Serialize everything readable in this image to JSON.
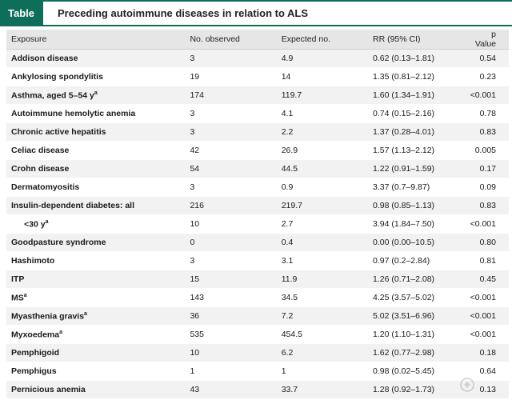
{
  "title": {
    "tag": "Table",
    "text": "Preceding autoimmune diseases in relation to ALS"
  },
  "columns": [
    "Exposure",
    "No. observed",
    "Expected no.",
    "RR (95% CI)",
    "p Value"
  ],
  "rows": [
    {
      "exposure": "Addison disease",
      "sup": "",
      "observed": "3",
      "expected": "4.9",
      "rr": "0.62 (0.13–1.81)",
      "p": "0.54"
    },
    {
      "exposure": "Ankylosing spondylitis",
      "sup": "",
      "observed": "19",
      "expected": "14",
      "rr": "1.35 (0.81–2.12)",
      "p": "0.23"
    },
    {
      "exposure": "Asthma, aged 5–54 y",
      "sup": "a",
      "observed": "174",
      "expected": "119.7",
      "rr": "1.60 (1.34–1.91)",
      "p": "<0.001"
    },
    {
      "exposure": "Autoimmune hemolytic anemia",
      "sup": "",
      "observed": "3",
      "expected": "4.1",
      "rr": "0.74 (0.15–2.16)",
      "p": "0.78"
    },
    {
      "exposure": "Chronic active hepatitis",
      "sup": "",
      "observed": "3",
      "expected": "2.2",
      "rr": "1.37 (0.28–4.01)",
      "p": "0.83"
    },
    {
      "exposure": "Celiac disease",
      "sup": "",
      "observed": "42",
      "expected": "26.9",
      "rr": "1.57 (1.13–2.12)",
      "p": "0.005"
    },
    {
      "exposure": "Crohn disease",
      "sup": "",
      "observed": "54",
      "expected": "44.5",
      "rr": "1.22 (0.91–1.59)",
      "p": "0.17"
    },
    {
      "exposure": "Dermatomyositis",
      "sup": "",
      "observed": "3",
      "expected": "0.9",
      "rr": "3.37 (0.7–9.87)",
      "p": "0.09"
    },
    {
      "exposure": "Insulin-dependent diabetes: all",
      "sup": "",
      "observed": "216",
      "expected": "219.7",
      "rr": "0.98 (0.85–1.13)",
      "p": "0.83"
    },
    {
      "exposure": "<30 y",
      "sup": "a",
      "observed": "10",
      "expected": "2.7",
      "rr": "3.94 (1.84–7.50)",
      "p": "<0.001",
      "indent": true
    },
    {
      "exposure": "Goodpasture syndrome",
      "sup": "",
      "observed": "0",
      "expected": "0.4",
      "rr": "0.00 (0.00–10.5)",
      "p": "0.80"
    },
    {
      "exposure": "Hashimoto",
      "sup": "",
      "observed": "3",
      "expected": "3.1",
      "rr": "0.97 (0.2–2.84)",
      "p": "0.81"
    },
    {
      "exposure": "ITP",
      "sup": "",
      "observed": "15",
      "expected": "11.9",
      "rr": "1.26 (0.71–2.08)",
      "p": "0.45"
    },
    {
      "exposure": "MS",
      "sup": "a",
      "observed": "143",
      "expected": "34.5",
      "rr": "4.25 (3.57–5.02)",
      "p": "<0.001"
    },
    {
      "exposure": "Myasthenia gravis",
      "sup": "a",
      "observed": "36",
      "expected": "7.2",
      "rr": "5.02 (3.51–6.96)",
      "p": "<0.001"
    },
    {
      "exposure": "Myxoedema",
      "sup": "a",
      "observed": "535",
      "expected": "454.5",
      "rr": "1.20 (1.10–1.31)",
      "p": "<0.001"
    },
    {
      "exposure": "Pemphigoid",
      "sup": "",
      "observed": "10",
      "expected": "6.2",
      "rr": "1.62 (0.77–2.98)",
      "p": "0.18"
    },
    {
      "exposure": "Pemphigus",
      "sup": "",
      "observed": "1",
      "expected": "1",
      "rr": "0.98 (0.02–5.45)",
      "p": "0.64"
    },
    {
      "exposure": "Pernicious anemia",
      "sup": "",
      "observed": "43",
      "expected": "33.7",
      "rr": "1.28 (0.92–1.73)",
      "p": "0.13"
    }
  ],
  "colors": {
    "accent": "#0f6e5a",
    "header_bg": "#e6e6e6",
    "stripe_bg": "#f2f2f2"
  }
}
